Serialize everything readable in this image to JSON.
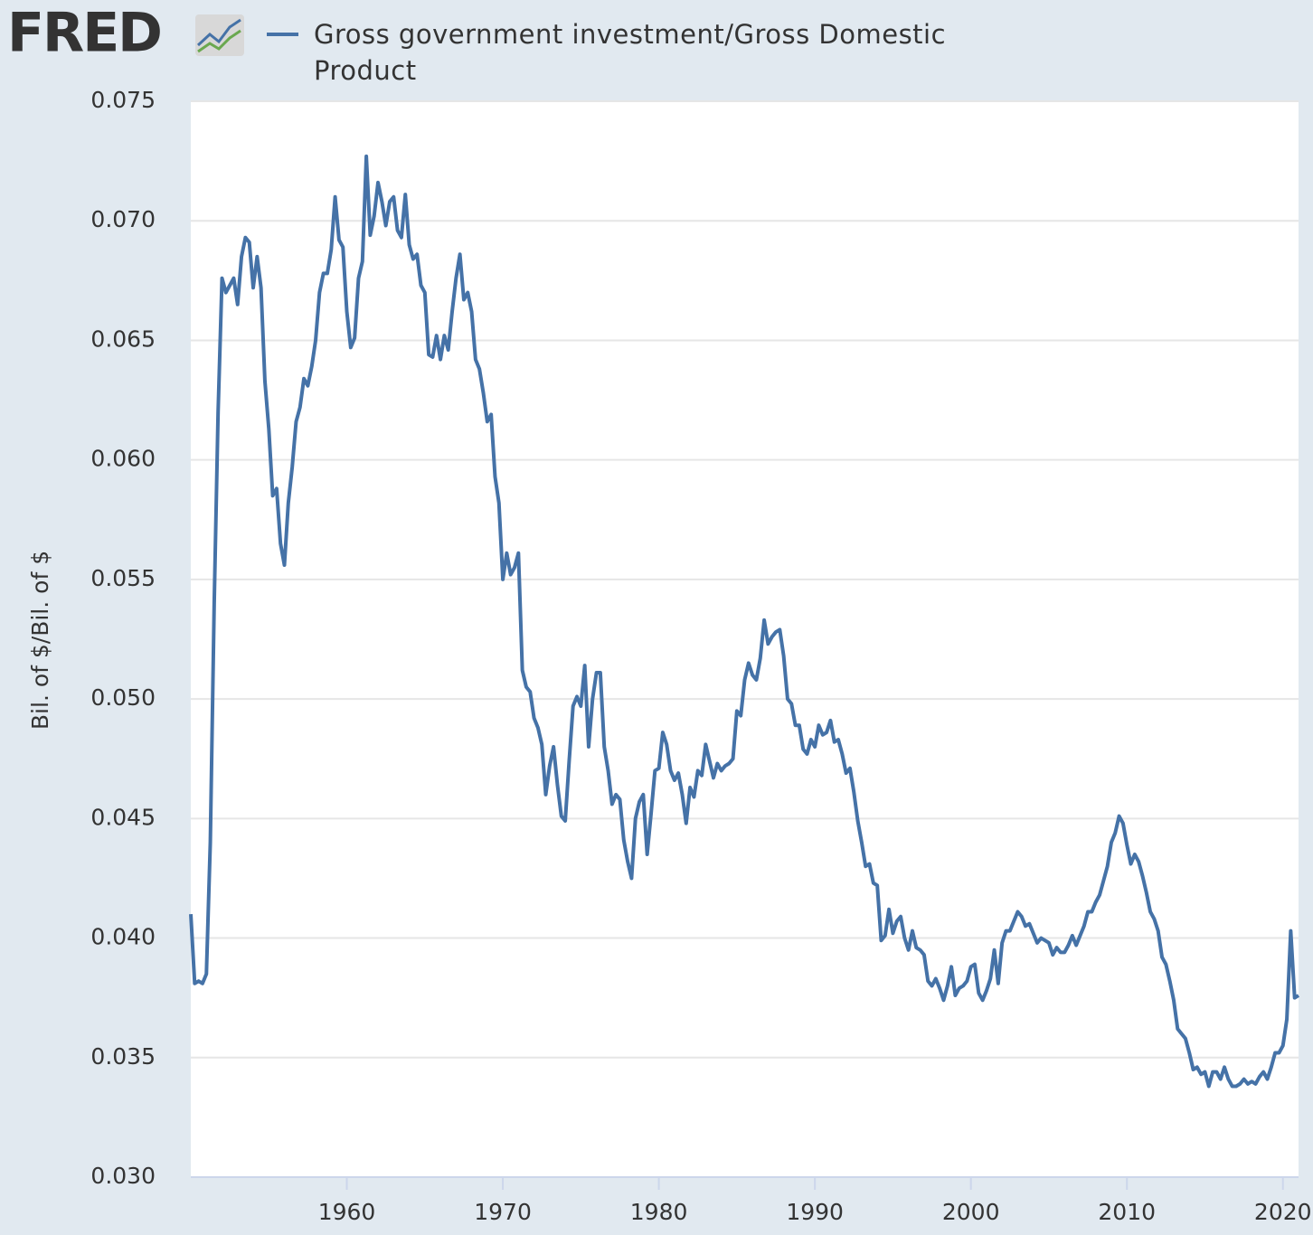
{
  "logo": "FRED",
  "chart_data": {
    "type": "line",
    "y_label": "Bil. of $/Bil. of $",
    "xlim": [
      1950,
      2021
    ],
    "xticks": [
      1960,
      1970,
      1980,
      1990,
      2000,
      2010,
      2020
    ],
    "ylim": [
      0.03,
      0.075
    ],
    "yticks": [
      {
        "value": 0.03,
        "label": "0.030"
      },
      0.035,
      {
        "value": 0.04,
        "label": "0.040"
      },
      0.045,
      {
        "value": 0.05,
        "label": "0.050"
      },
      0.055,
      {
        "value": 0.06,
        "label": "0.060"
      },
      0.065,
      {
        "value": 0.07,
        "label": "0.070"
      },
      0.075
    ],
    "grid": true,
    "x": [
      1950,
      1950.25,
      1950.5,
      1950.75,
      1951,
      1951.25,
      1951.5,
      1951.75,
      1952,
      1952.25,
      1952.5,
      1952.75,
      1953,
      1953.25,
      1953.5,
      1953.75,
      1954,
      1954.25,
      1954.5,
      1954.75,
      1955,
      1955.25,
      1955.5,
      1955.75,
      1956,
      1956.25,
      1956.5,
      1956.75,
      1957,
      1957.25,
      1957.5,
      1957.75,
      1958,
      1958.25,
      1958.5,
      1958.75,
      1959,
      1959.25,
      1959.5,
      1959.75,
      1960,
      1960.25,
      1960.5,
      1960.75,
      1961,
      1961.25,
      1961.5,
      1961.75,
      1962,
      1962.25,
      1962.5,
      1962.75,
      1963,
      1963.25,
      1963.5,
      1963.75,
      1964,
      1964.25,
      1964.5,
      1964.75,
      1965,
      1965.25,
      1965.5,
      1965.75,
      1966,
      1966.25,
      1966.5,
      1966.75,
      1967,
      1967.25,
      1967.5,
      1967.75,
      1968,
      1968.25,
      1968.5,
      1968.75,
      1969,
      1969.25,
      1969.5,
      1969.75,
      1970,
      1970.25,
      1970.5,
      1970.75,
      1971,
      1971.25,
      1971.5,
      1971.75,
      1972,
      1972.25,
      1972.5,
      1972.75,
      1973,
      1973.25,
      1973.5,
      1973.75,
      1974,
      1974.25,
      1974.5,
      1974.75,
      1975,
      1975.25,
      1975.5,
      1975.75,
      1976,
      1976.25,
      1976.5,
      1976.75,
      1977,
      1977.25,
      1977.5,
      1977.75,
      1978,
      1978.25,
      1978.5,
      1978.75,
      1979,
      1979.25,
      1979.5,
      1979.75,
      1980,
      1980.25,
      1980.5,
      1980.75,
      1981,
      1981.25,
      1981.5,
      1981.75,
      1982,
      1982.25,
      1982.5,
      1982.75,
      1983,
      1983.25,
      1983.5,
      1983.75,
      1984,
      1984.25,
      1984.5,
      1984.75,
      1985,
      1985.25,
      1985.5,
      1985.75,
      1986,
      1986.25,
      1986.5,
      1986.75,
      1987,
      1987.25,
      1987.5,
      1987.75,
      1988,
      1988.25,
      1988.5,
      1988.75,
      1989,
      1989.25,
      1989.5,
      1989.75,
      1990,
      1990.25,
      1990.5,
      1990.75,
      1991,
      1991.25,
      1991.5,
      1991.75,
      1992,
      1992.25,
      1992.5,
      1992.75,
      1993,
      1993.25,
      1993.5,
      1993.75,
      1994,
      1994.25,
      1994.5,
      1994.75,
      1995,
      1995.25,
      1995.5,
      1995.75,
      1996,
      1996.25,
      1996.5,
      1996.75,
      1997,
      1997.25,
      1997.5,
      1997.75,
      1998,
      1998.25,
      1998.5,
      1998.75,
      1999,
      1999.25,
      1999.5,
      1999.75,
      2000,
      2000.25,
      2000.5,
      2000.75,
      2001,
      2001.25,
      2001.5,
      2001.75,
      2002,
      2002.25,
      2002.5,
      2002.75,
      2003,
      2003.25,
      2003.5,
      2003.75,
      2004,
      2004.25,
      2004.5,
      2004.75,
      2005,
      2005.25,
      2005.5,
      2005.75,
      2006,
      2006.25,
      2006.5,
      2006.75,
      2007,
      2007.25,
      2007.5,
      2007.75,
      2008,
      2008.25,
      2008.5,
      2008.75,
      2009,
      2009.25,
      2009.5,
      2009.75,
      2010,
      2010.25,
      2010.5,
      2010.75,
      2011,
      2011.25,
      2011.5,
      2011.75,
      2012,
      2012.25,
      2012.5,
      2012.75,
      2013,
      2013.25,
      2013.5,
      2013.75,
      2014,
      2014.25,
      2014.5,
      2014.75,
      2015,
      2015.25,
      2015.5,
      2015.75,
      2016,
      2016.25,
      2016.5,
      2016.75,
      2017,
      2017.25,
      2017.5,
      2017.75,
      2018,
      2018.25,
      2018.5,
      2018.75,
      2019,
      2019.25,
      2019.5,
      2019.75,
      2020,
      2020.25,
      2020.5,
      2020.75,
      2021
    ],
    "series": [
      {
        "name": "Gross government investment/Gross Domestic Product",
        "color": "#4572a7",
        "values": [
          0.041,
          0.0381,
          0.0382,
          0.0381,
          0.0385,
          0.044,
          0.054,
          0.062,
          0.0676,
          0.067,
          0.0673,
          0.0676,
          0.0665,
          0.0685,
          0.0693,
          0.0691,
          0.0672,
          0.0685,
          0.0672,
          0.0633,
          0.0613,
          0.0585,
          0.0588,
          0.0565,
          0.0556,
          0.0582,
          0.0597,
          0.0616,
          0.0622,
          0.0634,
          0.0631,
          0.0639,
          0.065,
          0.067,
          0.0678,
          0.0678,
          0.0688,
          0.071,
          0.0692,
          0.0689,
          0.0662,
          0.0647,
          0.0651,
          0.0676,
          0.0683,
          0.0727,
          0.0694,
          0.0702,
          0.0716,
          0.0708,
          0.0698,
          0.0708,
          0.071,
          0.0696,
          0.0693,
          0.0711,
          0.069,
          0.0684,
          0.0686,
          0.0673,
          0.067,
          0.0644,
          0.0643,
          0.0652,
          0.0642,
          0.0652,
          0.0646,
          0.0662,
          0.0676,
          0.0686,
          0.0667,
          0.067,
          0.0662,
          0.0642,
          0.0638,
          0.0628,
          0.0616,
          0.0619,
          0.0593,
          0.0582,
          0.055,
          0.0561,
          0.0552,
          0.0555,
          0.0561,
          0.0512,
          0.0505,
          0.0503,
          0.0492,
          0.0488,
          0.0481,
          0.046,
          0.0472,
          0.048,
          0.0464,
          0.0451,
          0.0449,
          0.0474,
          0.0497,
          0.0501,
          0.0497,
          0.0514,
          0.048,
          0.05,
          0.0511,
          0.0511,
          0.048,
          0.047,
          0.0456,
          0.046,
          0.0458,
          0.0441,
          0.0432,
          0.0425,
          0.045,
          0.0457,
          0.046,
          0.0435,
          0.0452,
          0.047,
          0.0471,
          0.0486,
          0.0481,
          0.047,
          0.0466,
          0.0469,
          0.046,
          0.0448,
          0.0463,
          0.0459,
          0.047,
          0.0468,
          0.0481,
          0.0474,
          0.0467,
          0.0473,
          0.047,
          0.0472,
          0.0473,
          0.0475,
          0.0495,
          0.0493,
          0.0508,
          0.0515,
          0.051,
          0.0508,
          0.0517,
          0.0533,
          0.0523,
          0.0526,
          0.0528,
          0.0529,
          0.0518,
          0.05,
          0.0498,
          0.0489,
          0.0489,
          0.0479,
          0.0477,
          0.0483,
          0.048,
          0.0489,
          0.0485,
          0.0486,
          0.0491,
          0.0482,
          0.0483,
          0.0477,
          0.0469,
          0.0471,
          0.0461,
          0.0449,
          0.044,
          0.043,
          0.0431,
          0.0423,
          0.0422,
          0.0399,
          0.0401,
          0.0412,
          0.0402,
          0.0407,
          0.0409,
          0.04,
          0.0395,
          0.0403,
          0.0396,
          0.0395,
          0.0393,
          0.0382,
          0.038,
          0.0383,
          0.0379,
          0.0374,
          0.038,
          0.0388,
          0.0376,
          0.0379,
          0.038,
          0.0382,
          0.0388,
          0.0389,
          0.0377,
          0.0374,
          0.0378,
          0.0383,
          0.0395,
          0.0381,
          0.0398,
          0.0403,
          0.0403,
          0.0407,
          0.0411,
          0.0409,
          0.0405,
          0.0406,
          0.0402,
          0.0398,
          0.04,
          0.0399,
          0.0398,
          0.0393,
          0.0396,
          0.0394,
          0.0394,
          0.0397,
          0.0401,
          0.0397,
          0.0401,
          0.0405,
          0.0411,
          0.0411,
          0.0415,
          0.0418,
          0.0424,
          0.043,
          0.044,
          0.0444,
          0.0451,
          0.0448,
          0.0439,
          0.0431,
          0.0435,
          0.0432,
          0.0426,
          0.0419,
          0.0411,
          0.0408,
          0.0403,
          0.0392,
          0.0389,
          0.0382,
          0.0374,
          0.0362,
          0.036,
          0.0358,
          0.0352,
          0.0345,
          0.0346,
          0.0343,
          0.0344,
          0.0338,
          0.0344,
          0.0344,
          0.0341,
          0.0346,
          0.0341,
          0.0338,
          0.0338,
          0.0339,
          0.0341,
          0.0339,
          0.034,
          0.0339,
          0.0342,
          0.0344,
          0.0341,
          0.0346,
          0.0352,
          0.0352,
          0.0355,
          0.0366,
          0.0403,
          0.0375,
          0.0376
        ]
      }
    ]
  }
}
